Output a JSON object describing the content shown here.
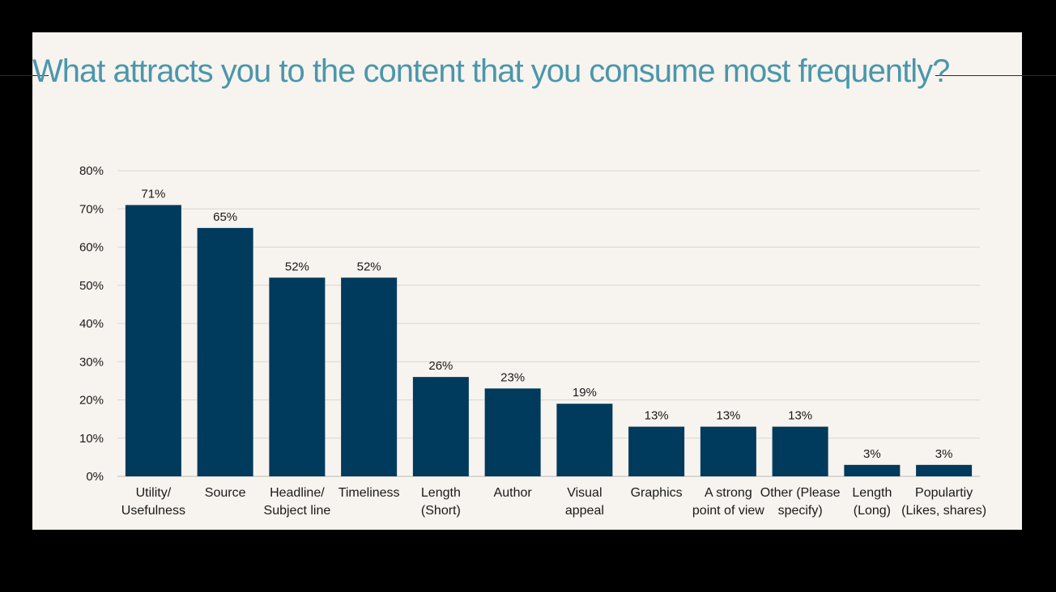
{
  "colors": {
    "frame": "#000000",
    "background": "#f7f3ee",
    "title": "#4a97ab",
    "bar": "#003a5c",
    "grid": "#d9d6d0",
    "text": "#1a1a1a"
  },
  "chart_data": {
    "type": "bar",
    "title": "What attracts you to the content that you consume most frequently?",
    "xlabel": "",
    "ylabel": "",
    "ylim": [
      0,
      80
    ],
    "yticks": [
      "0%",
      "10%",
      "20%",
      "30%",
      "40%",
      "50%",
      "60%",
      "70%",
      "80%"
    ],
    "grid": true,
    "legend": "none",
    "categories": [
      [
        "Utility/",
        "Usefulness"
      ],
      [
        "Source"
      ],
      [
        "Headline/",
        "Subject line"
      ],
      [
        "Timeliness"
      ],
      [
        "Length",
        "(Short)"
      ],
      [
        "Author"
      ],
      [
        "Visual",
        "appeal"
      ],
      [
        "Graphics"
      ],
      [
        "A strong",
        "point of view"
      ],
      [
        "Other (Please",
        "specify)"
      ],
      [
        "Length",
        "(Long)"
      ],
      [
        "Populartiy",
        "(Likes, shares)"
      ]
    ],
    "values": [
      71,
      65,
      52,
      52,
      26,
      23,
      19,
      13,
      13,
      13,
      3,
      3
    ],
    "data_labels": [
      "71%",
      "65%",
      "52%",
      "52%",
      "26%",
      "23%",
      "19%",
      "13%",
      "13%",
      "13%",
      "3%",
      "3%"
    ]
  }
}
